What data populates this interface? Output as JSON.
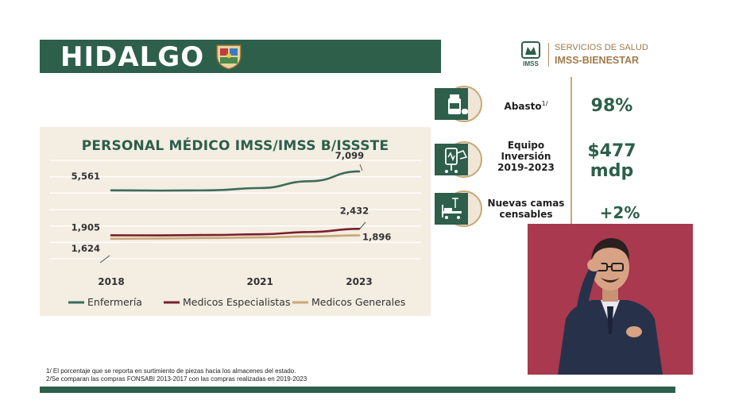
{
  "header": {
    "title": "HIDALGO"
  },
  "logo": {
    "line1": "SERVICIOS DE SALUD",
    "line2": "IMSS-BIENESTAR",
    "mark": "IMSS"
  },
  "metrics": [
    {
      "label": "Abasto",
      "sup": "1/",
      "value": "98%",
      "icon": "medicine-bottle-icon"
    },
    {
      "label_lines": [
        "Equipo",
        "Inversión",
        "2019-2023"
      ],
      "value_lines": [
        "$477",
        "mdp"
      ],
      "icon": "medical-equipment-icon"
    },
    {
      "label_lines": [
        "Nuevas camas",
        "censables"
      ],
      "value": "+2%",
      "icon": "hospital-bed-icon"
    }
  ],
  "chart_data": {
    "type": "line",
    "title": "PERSONAL MÉDICO IMSS/IMSS B/ISSSTE",
    "categories": [
      "2018",
      "2021",
      "2023"
    ],
    "x_min": 2018,
    "x_max": 2023,
    "ylim": [
      0,
      8000
    ],
    "grid": true,
    "legend_position": "bottom",
    "series": [
      {
        "name": "Enfermería",
        "color": "#3c6b5a",
        "points": [
          [
            2018,
            5561
          ],
          [
            2019,
            5540
          ],
          [
            2020,
            5560
          ],
          [
            2021,
            5750
          ],
          [
            2022,
            6300
          ],
          [
            2023,
            7099
          ]
        ],
        "labels": [
          {
            "x": 2018,
            "text": "5,561"
          },
          {
            "x": 2023,
            "text": "7,099"
          }
        ]
      },
      {
        "name": "Medicos Especialistas",
        "color": "#7a1f2b",
        "points": [
          [
            2018,
            1905
          ],
          [
            2019,
            1900
          ],
          [
            2020,
            1930
          ],
          [
            2021,
            1990
          ],
          [
            2022,
            2170
          ],
          [
            2023,
            2432
          ]
        ],
        "labels": [
          {
            "x": 2018,
            "text": "1,905"
          },
          {
            "x": 2023,
            "text": "2,432"
          }
        ]
      },
      {
        "name": "Medicos Generales",
        "color": "#c8a877",
        "points": [
          [
            2018,
            1624
          ],
          [
            2019,
            1650
          ],
          [
            2020,
            1690
          ],
          [
            2021,
            1740
          ],
          [
            2022,
            1820
          ],
          [
            2023,
            1896
          ]
        ],
        "labels": [
          {
            "x": 2018,
            "text": "1,624"
          },
          {
            "x": 2023,
            "text": "1,896"
          }
        ]
      }
    ]
  },
  "footnotes": [
    "1/ El porcentaje que se reporta en surtimiento de piezas hacia los almacenes del estado.",
    "2/Se comparan las compras FONSABI 2013-2017 con las compras realizadas en 2019-2023"
  ],
  "colors": {
    "primary_green": "#2d5f4b",
    "gold": "#b38e5d",
    "chart_bg": "#f3ede2",
    "video_bg": "#a8394e"
  }
}
